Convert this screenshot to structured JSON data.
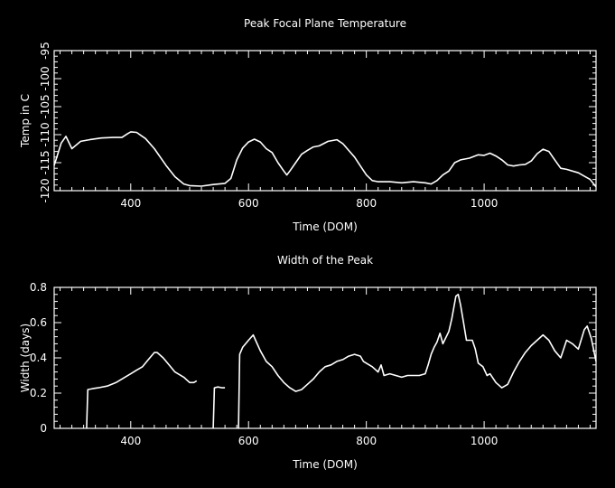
{
  "chart_data": [
    {
      "type": "line",
      "title": "Peak Focal Plane Temperature",
      "xlabel": "Time (DOM)",
      "ylabel": "Temp in C",
      "xlim": [
        270,
        1190
      ],
      "ylim": [
        -120,
        -95
      ],
      "xticks": [
        400,
        600,
        800,
        1000
      ],
      "yticks": [
        -120,
        -115,
        -110,
        -105,
        -100,
        -95
      ],
      "color": "#ffffff",
      "series": [
        {
          "x": [
            270,
            282,
            290,
            300,
            315,
            330,
            350,
            370,
            385,
            395,
            400,
            410,
            418,
            425,
            440,
            460,
            475,
            490,
            500,
            520,
            540,
            560,
            570,
            580,
            590,
            600,
            610,
            620,
            630,
            640,
            650,
            660,
            665,
            670,
            680,
            690,
            700,
            710,
            720,
            735,
            750,
            760,
            770,
            780,
            790,
            800,
            810,
            820,
            840,
            860,
            880,
            900,
            910,
            920,
            930,
            940,
            950,
            960,
            975,
            990,
            1000,
            1010,
            1020,
            1030,
            1040,
            1050,
            1060,
            1070,
            1080,
            1090,
            1100,
            1110,
            1120,
            1130,
            1140,
            1150,
            1160,
            1170,
            1180,
            1190
          ],
          "values": [
            -115.5,
            -111.5,
            -110.3,
            -112.5,
            -111.2,
            -110.9,
            -110.6,
            -110.5,
            -110.5,
            -109.8,
            -109.5,
            -109.6,
            -110.2,
            -110.7,
            -112.5,
            -115.5,
            -117.5,
            -118.8,
            -119.1,
            -119.2,
            -118.9,
            -118.7,
            -117.8,
            -114.5,
            -112.4,
            -111.3,
            -110.8,
            -111.3,
            -112.5,
            -113.2,
            -115,
            -116.5,
            -117.2,
            -116.5,
            -115,
            -113.5,
            -112.8,
            -112.2,
            -112,
            -111.2,
            -110.9,
            -111.6,
            -112.8,
            -114,
            -115.6,
            -117.2,
            -118.2,
            -118.4,
            -118.4,
            -118.6,
            -118.4,
            -118.6,
            -118.8,
            -118.2,
            -117.2,
            -116.5,
            -115,
            -114.5,
            -114.2,
            -113.6,
            -113.7,
            -113.3,
            -113.8,
            -114.5,
            -115.4,
            -115.6,
            -115.4,
            -115.3,
            -114.7,
            -113.4,
            -112.6,
            -113,
            -114.5,
            -116,
            -116.2,
            -116.5,
            -116.8,
            -117.4,
            -118,
            -119.3
          ]
        }
      ]
    },
    {
      "type": "line",
      "title": "Width of the Peak",
      "xlabel": "Time (DOM)",
      "ylabel": "Width (days)",
      "xlim": [
        270,
        1190
      ],
      "ylim": [
        0,
        0.8
      ],
      "xticks": [
        400,
        600,
        800,
        1000
      ],
      "yticks": [
        0,
        0.2,
        0.4,
        0.6,
        0.8
      ],
      "color": "#ffffff",
      "series": [
        {
          "x": [
            325,
            327,
            335,
            345,
            360,
            375,
            390,
            400,
            410,
            420,
            430,
            440,
            445,
            455,
            465,
            475,
            490,
            500,
            507,
            512
          ],
          "values": [
            0,
            0.22,
            0.225,
            0.23,
            0.24,
            0.26,
            0.29,
            0.31,
            0.33,
            0.35,
            0.39,
            0.43,
            0.43,
            0.4,
            0.36,
            0.32,
            0.29,
            0.26,
            0.26,
            0.27
          ]
        },
        {
          "x": [
            540,
            542,
            548,
            555,
            560
          ],
          "values": [
            0,
            0.23,
            0.235,
            0.23,
            0.23
          ]
        },
        {
          "x": [
            583,
            585,
            590,
            600,
            608,
            612,
            620,
            630,
            640,
            650,
            660,
            670,
            680,
            690,
            700,
            710,
            720,
            730,
            740,
            750,
            760,
            770,
            780,
            790,
            795,
            800,
            810,
            820,
            825,
            830,
            840,
            850,
            860,
            870,
            880,
            890,
            900,
            905,
            910,
            915,
            920,
            925,
            930,
            940,
            945,
            952,
            956,
            960,
            965,
            970,
            980,
            985,
            990,
            998,
            1005,
            1010,
            1020,
            1030,
            1040,
            1050,
            1060,
            1070,
            1080,
            1090,
            1100,
            1110,
            1120,
            1130,
            1140,
            1150,
            1160,
            1170,
            1175,
            1182,
            1190
          ],
          "values": [
            0,
            0.42,
            0.46,
            0.5,
            0.53,
            0.5,
            0.44,
            0.38,
            0.35,
            0.3,
            0.26,
            0.23,
            0.21,
            0.22,
            0.25,
            0.28,
            0.32,
            0.35,
            0.36,
            0.38,
            0.39,
            0.41,
            0.42,
            0.41,
            0.38,
            0.37,
            0.35,
            0.32,
            0.36,
            0.3,
            0.31,
            0.3,
            0.29,
            0.3,
            0.3,
            0.3,
            0.31,
            0.36,
            0.42,
            0.46,
            0.49,
            0.54,
            0.48,
            0.55,
            0.62,
            0.75,
            0.76,
            0.7,
            0.6,
            0.5,
            0.5,
            0.45,
            0.37,
            0.35,
            0.3,
            0.31,
            0.26,
            0.23,
            0.25,
            0.32,
            0.38,
            0.43,
            0.47,
            0.5,
            0.53,
            0.5,
            0.44,
            0.4,
            0.5,
            0.48,
            0.45,
            0.56,
            0.58,
            0.51,
            0.38
          ]
        }
      ]
    }
  ]
}
